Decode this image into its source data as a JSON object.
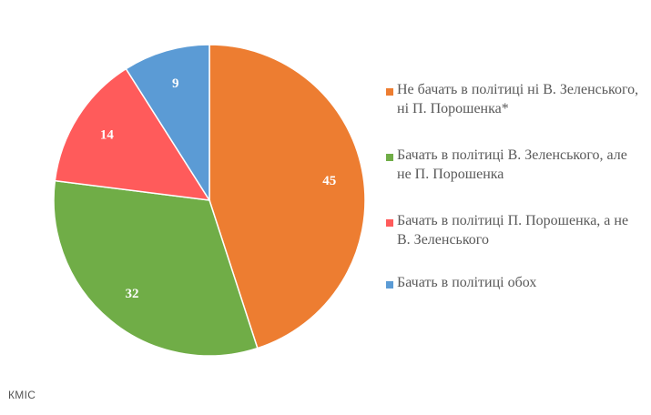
{
  "source": "КМІС",
  "colors": {
    "not_both": "#ED7D31",
    "zelensky_only": "#70AD47",
    "poroshenko_only": "#FF5B5B",
    "both": "#5B9BD5"
  },
  "chart_data": {
    "type": "pie",
    "title": "",
    "legend_position": "right",
    "slices": [
      {
        "label": "Не бачать в політиці ні В. Зеленського, ні П. Порошенка*",
        "value": 45,
        "value_label": "45",
        "color": "#ED7D31"
      },
      {
        "label": "Бачать в політиці В. Зеленського, але не П. Порошенка",
        "value": 32,
        "value_label": "32",
        "color": "#70AD47"
      },
      {
        "label": "Бачать в політиці П. Порошенка, а не В. Зеленського",
        "value": 14,
        "value_label": "14",
        "color": "#FF5B5B"
      },
      {
        "label": "Бачать в політиці обох",
        "value": 9,
        "value_label": "9",
        "color": "#5B9BD5"
      }
    ]
  }
}
